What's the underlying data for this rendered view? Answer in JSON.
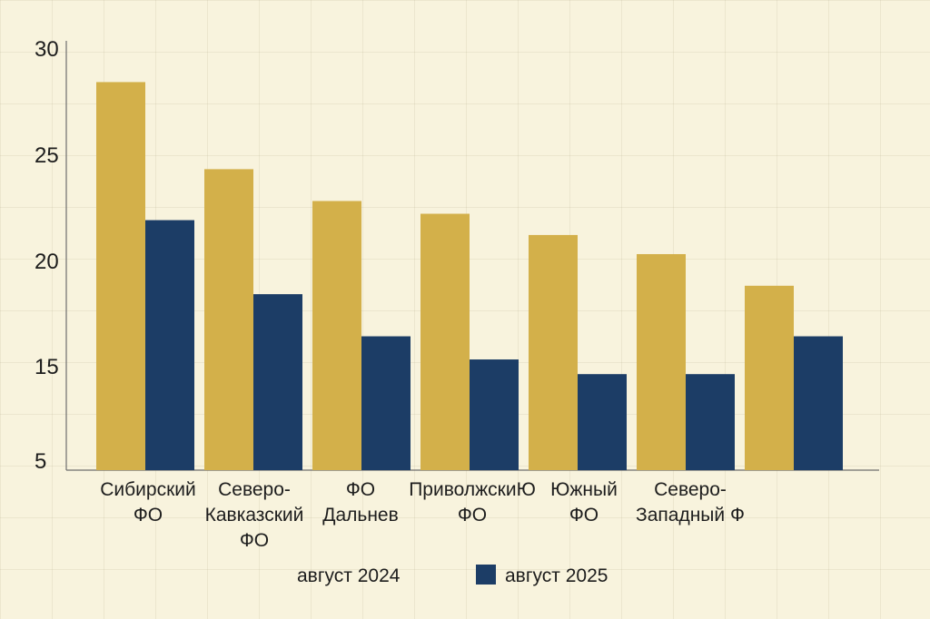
{
  "chart_data": {
    "type": "bar",
    "categories": [
      [
        "Сибирский",
        "ФО"
      ],
      [
        "Северо-",
        "Кавказский",
        "ФО"
      ],
      [
        "ФО",
        "Дальнев"
      ],
      [
        "ПриволжскиЮ",
        "ФО"
      ],
      [
        "Южный",
        "ФО"
      ],
      [
        "Северо-",
        "Западный Ф"
      ],
      [
        ""
      ]
    ],
    "series": [
      {
        "name": "август 2024",
        "color": "#d3b04a",
        "values": [
          28.4,
          24.3,
          22.8,
          22.2,
          21.2,
          20.3,
          18.8
        ]
      },
      {
        "name": "август 2025",
        "color": "#1c3d66",
        "values": [
          21.9,
          18.4,
          16.4,
          15.3,
          14.2,
          14.2,
          16.4
        ]
      }
    ],
    "y_ticks": [
      "5",
      "15",
      "20",
      "25",
      "30"
    ],
    "ylim": [
      5,
      30
    ],
    "grid": true,
    "legend_position": "bottom"
  }
}
